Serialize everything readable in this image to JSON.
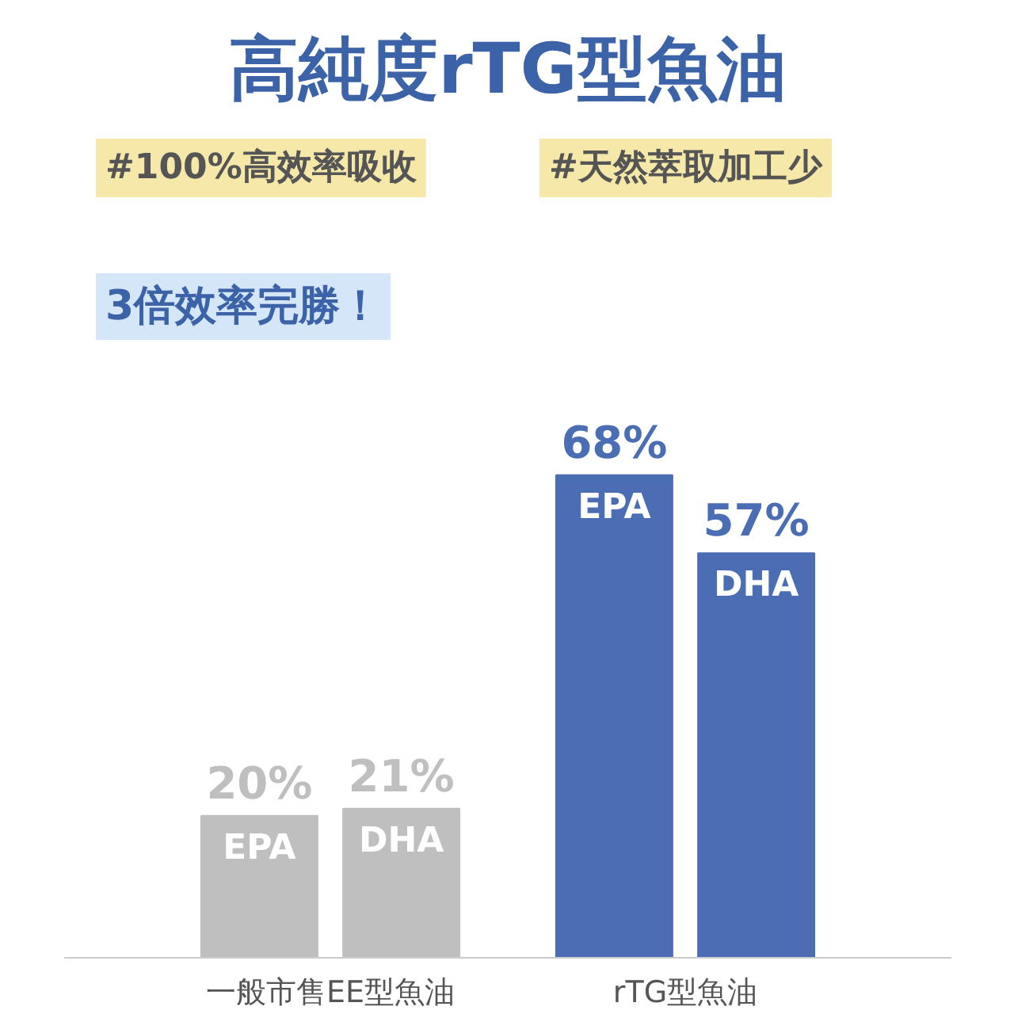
{
  "chart_data": {
    "type": "bar",
    "title": "高純度rTG型魚油",
    "categories": [
      "一般市售EE型魚油",
      "rTG型魚油"
    ],
    "series": [
      {
        "name": "EPA",
        "colors": [
          "#bfbfbf",
          "#4a6db3"
        ],
        "values": [
          20,
          68
        ],
        "value_labels": [
          "20%",
          "68%"
        ]
      },
      {
        "name": "DHA",
        "colors": [
          "#bfbfbf",
          "#4a6db3"
        ],
        "values": [
          21,
          57
        ],
        "value_labels": [
          "21%",
          "57%"
        ]
      }
    ],
    "annotations": [
      "#100%高效率吸收",
      "#天然萃取加工少",
      "3倍效率完勝！"
    ],
    "grid": false
  }
}
